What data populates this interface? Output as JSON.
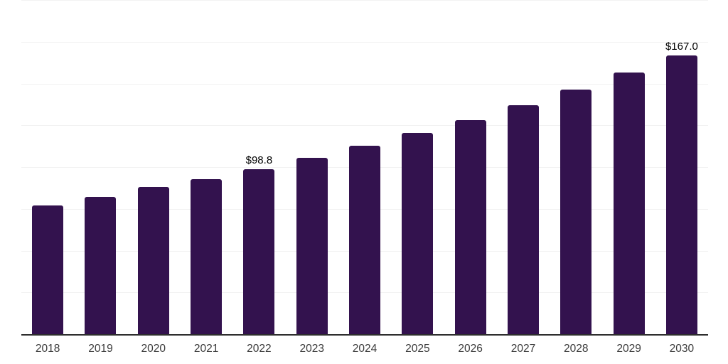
{
  "chart_data": {
    "type": "bar",
    "title": "",
    "xlabel": "",
    "ylabel": "",
    "categories": [
      "2018",
      "2019",
      "2020",
      "2021",
      "2022",
      "2023",
      "2024",
      "2025",
      "2026",
      "2027",
      "2028",
      "2029",
      "2030"
    ],
    "values": [
      77.0,
      82.3,
      88.0,
      92.8,
      98.8,
      105.4,
      112.9,
      120.4,
      128.1,
      137.0,
      146.2,
      156.4,
      167.0
    ],
    "value_labels": {
      "2022": "$98.8",
      "2030": "$167.0"
    },
    "ylim": [
      0,
      200
    ],
    "grid_step": 25,
    "grid": true,
    "legend": false,
    "colors": {
      "bar": "#33124e",
      "axis": "#2e2e2e",
      "gridline": "#f2f2f2",
      "tick_label": "#3a3a3a",
      "value_label": "#000000",
      "background": "#ffffff"
    }
  }
}
